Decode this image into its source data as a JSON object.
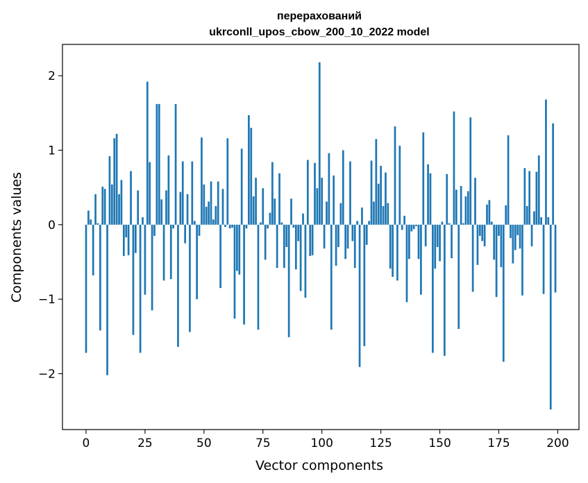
{
  "chart_data": {
    "type": "bar",
    "title": [
      "перерахований",
      "ukrconll_upos_cbow_200_10_2022 model"
    ],
    "xlabel": "Vector components",
    "ylabel": "Components values",
    "xlim": [
      -10,
      209
    ],
    "ylim": [
      -2.75,
      2.42
    ],
    "xticks": [
      0,
      25,
      50,
      75,
      100,
      125,
      150,
      175,
      200
    ],
    "yticks": [
      -2,
      -1,
      0,
      1,
      2
    ],
    "ytick_labels": [
      "−2",
      "−1",
      "0",
      "1",
      "2"
    ],
    "bar_color": "#1f77b4",
    "grid": false,
    "x": [
      0,
      1,
      2,
      3,
      4,
      5,
      6,
      7,
      8,
      9,
      10,
      11,
      12,
      13,
      14,
      15,
      16,
      17,
      18,
      19,
      20,
      21,
      22,
      23,
      24,
      25,
      26,
      27,
      28,
      29,
      30,
      31,
      32,
      33,
      34,
      35,
      36,
      37,
      38,
      39,
      40,
      41,
      42,
      43,
      44,
      45,
      46,
      47,
      48,
      49,
      50,
      51,
      52,
      53,
      54,
      55,
      56,
      57,
      58,
      59,
      60,
      61,
      62,
      63,
      64,
      65,
      66,
      67,
      68,
      69,
      70,
      71,
      72,
      73,
      74,
      75,
      76,
      77,
      78,
      79,
      80,
      81,
      82,
      83,
      84,
      85,
      86,
      87,
      88,
      89,
      90,
      91,
      92,
      93,
      94,
      95,
      96,
      97,
      98,
      99,
      100,
      101,
      102,
      103,
      104,
      105,
      106,
      107,
      108,
      109,
      110,
      111,
      112,
      113,
      114,
      115,
      116,
      117,
      118,
      119,
      120,
      121,
      122,
      123,
      124,
      125,
      126,
      127,
      128,
      129,
      130,
      131,
      132,
      133,
      134,
      135,
      136,
      137,
      138,
      139,
      140,
      141,
      142,
      143,
      144,
      145,
      146,
      147,
      148,
      149,
      150,
      151,
      152,
      153,
      154,
      155,
      156,
      157,
      158,
      159,
      160,
      161,
      162,
      163,
      164,
      165,
      166,
      167,
      168,
      169,
      170,
      171,
      172,
      173,
      174,
      175,
      176,
      177,
      178,
      179,
      180,
      181,
      182,
      183,
      184,
      185,
      186,
      187,
      188,
      189,
      190,
      191,
      192,
      193,
      194,
      195,
      196,
      197,
      198,
      199
    ],
    "values": [
      -1.72,
      0.19,
      0.07,
      -0.68,
      0.41,
      0.02,
      -1.42,
      0.51,
      0.48,
      -2.02,
      0.92,
      0.54,
      1.16,
      1.22,
      0.41,
      0.6,
      -0.42,
      -0.17,
      -0.41,
      0.72,
      -1.48,
      -0.38,
      0.46,
      -1.72,
      0.1,
      -0.94,
      1.92,
      0.84,
      -1.15,
      -0.15,
      1.62,
      1.62,
      0.34,
      -0.75,
      0.46,
      0.93,
      -0.73,
      -0.05,
      1.62,
      -1.64,
      0.44,
      0.85,
      -0.25,
      0.41,
      -1.44,
      0.85,
      0.05,
      -1.0,
      -0.15,
      1.17,
      0.54,
      0.24,
      0.31,
      0.58,
      0.07,
      0.25,
      0.58,
      -0.85,
      0.48,
      -0.03,
      1.16,
      -0.05,
      -0.04,
      -1.26,
      -0.62,
      -0.67,
      1.02,
      -1.34,
      -0.05,
      1.47,
      1.3,
      0.38,
      0.63,
      -1.41,
      0.03,
      0.49,
      -0.47,
      -0.05,
      0.16,
      0.84,
      0.35,
      -0.58,
      0.69,
      0.03,
      -0.58,
      -0.3,
      -1.51,
      0.35,
      -0.04,
      -0.6,
      -0.22,
      -0.89,
      0.15,
      -0.98,
      0.87,
      -0.42,
      -0.41,
      0.83,
      0.49,
      2.18,
      0.63,
      -0.32,
      0.31,
      0.96,
      -1.41,
      0.66,
      -0.55,
      -0.3,
      0.29,
      1.0,
      -0.46,
      -0.32,
      0.85,
      -0.22,
      -0.58,
      0.05,
      -1.91,
      0.23,
      -1.63,
      -0.27,
      0.05,
      0.86,
      0.31,
      1.15,
      0.55,
      0.79,
      0.25,
      0.7,
      0.29,
      -0.59,
      -0.7,
      1.32,
      -0.75,
      1.06,
      -0.07,
      0.12,
      -1.04,
      -0.46,
      -0.09,
      -0.06,
      -0.02,
      -0.46,
      -0.94,
      1.24,
      -0.29,
      0.81,
      0.69,
      -1.72,
      -0.59,
      -0.3,
      -0.49,
      0.04,
      -1.76,
      0.68,
      0.02,
      -0.45,
      1.52,
      0.47,
      -1.4,
      0.52,
      0.02,
      0.38,
      0.45,
      1.44,
      -0.9,
      0.63,
      -0.54,
      -0.15,
      -0.22,
      -0.29,
      0.27,
      0.33,
      0.04,
      -0.47,
      -0.97,
      -0.15,
      -0.57,
      -1.84,
      0.26,
      1.2,
      -0.18,
      -0.52,
      -0.34,
      -0.14,
      -0.32,
      -0.95,
      0.76,
      0.25,
      0.72,
      -0.29,
      0.18,
      0.71,
      0.93,
      0.1,
      -0.93,
      1.68,
      0.1,
      -2.48,
      1.36,
      -0.91
    ]
  }
}
